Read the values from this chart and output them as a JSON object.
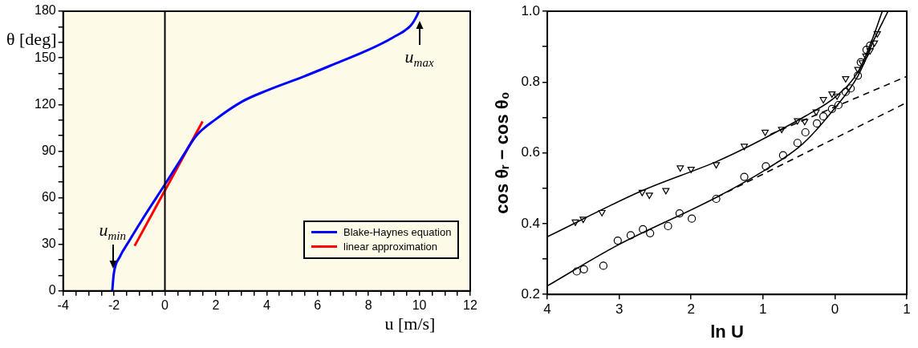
{
  "chart_data": [
    {
      "type": "line",
      "xlabel": "u [m/s]",
      "ylabel": "θ [deg]",
      "legend": "bottom right",
      "xlim": [
        -4,
        12
      ],
      "xticks": [
        -4,
        {
          "value": -3.5,
          "label": null
        },
        {
          "value": -3,
          "label": null
        },
        {
          "value": -2.5,
          "label": null
        },
        -2,
        {
          "value": -1.5,
          "label": null
        },
        {
          "value": -1,
          "label": null
        },
        {
          "value": -0.5,
          "label": null
        },
        0,
        {
          "value": 0.5,
          "label": null
        },
        {
          "value": 1,
          "label": null
        },
        {
          "value": 1.5,
          "label": null
        },
        2,
        {
          "value": 2.5,
          "label": null
        },
        {
          "value": 3,
          "label": null
        },
        {
          "value": 3.5,
          "label": null
        },
        4,
        {
          "value": 4.5,
          "label": null
        },
        {
          "value": 5,
          "label": null
        },
        {
          "value": 5.5,
          "label": null
        },
        6,
        {
          "value": 6.5,
          "label": null
        },
        {
          "value": 7,
          "label": null
        },
        {
          "value": 7.5,
          "label": null
        },
        8,
        {
          "value": 8.5,
          "label": null
        },
        {
          "value": 9,
          "label": null
        },
        {
          "value": 9.5,
          "label": null
        },
        10,
        {
          "value": 10.5,
          "label": null
        },
        {
          "value": 11,
          "label": null
        },
        {
          "value": 11.5,
          "label": null
        },
        12
      ],
      "ylim": [
        0,
        180
      ],
      "yticks": [
        0,
        {
          "value": 10,
          "label": null
        },
        {
          "value": 20,
          "label": null
        },
        30,
        {
          "value": 40,
          "label": null
        },
        {
          "value": 50,
          "label": null
        },
        60,
        {
          "value": 70,
          "label": null
        },
        {
          "value": 80,
          "label": null
        },
        90,
        {
          "value": 100,
          "label": null
        },
        {
          "value": 110,
          "label": null
        },
        120,
        {
          "value": 130,
          "label": null
        },
        {
          "value": 140,
          "label": null
        },
        150,
        {
          "value": 160,
          "label": null
        },
        {
          "value": 170,
          "label": null
        },
        180
      ],
      "ref_lines": [
        {
          "axis": "x",
          "value": 0,
          "color": "#000000"
        }
      ],
      "annotations": [
        {
          "text": "u$_{min}$",
          "x": -2.05,
          "y": 0
        },
        {
          "text": "u$_{max}$",
          "x": 10,
          "y": 180
        }
      ],
      "series": [
        {
          "name": "Blake-Haynes equation",
          "color": "#0000ff",
          "x": [
            -2.07,
            -2.01,
            -1.77,
            -1.41,
            -0.81,
            -0.02,
            0.64,
            1.24,
            1.96,
            3.05,
            4.01,
            5.46,
            6.66,
            7.98,
            8.95,
            9.67,
            9.9,
            9.98
          ],
          "values": [
            0,
            11,
            22,
            32,
            48,
            68,
            85,
            100,
            110,
            122,
            129,
            138,
            146,
            155,
            163,
            171,
            177,
            180
          ]
        },
        {
          "name": "linear approximation",
          "color": "#ff0000",
          "x": [
            -1.19,
            1.48
          ],
          "values": [
            29,
            109
          ]
        }
      ]
    },
    {
      "type": "line",
      "xlabel": "ln U",
      "ylabel": "cos θᵣ − cos θ₀",
      "xlim": [
        -4,
        1
      ],
      "xticks": [
        {
          "value": -4,
          "label": "4"
        },
        {
          "value": -3,
          "label": "3"
        },
        {
          "value": -2,
          "label": "2"
        },
        {
          "value": -1,
          "label": "1"
        },
        0,
        1
      ],
      "ylim": [
        0.2,
        1
      ],
      "yticks": [
        0.2,
        {
          "value": 0.3,
          "label": null
        },
        0.4,
        {
          "value": 0.5,
          "label": null
        },
        0.6,
        {
          "value": 0.7,
          "label": null
        },
        0.8,
        {
          "value": 0.9,
          "label": null
        },
        {
          "value": 1,
          "label": "1.0"
        }
      ],
      "series": [
        {
          "type": "scatter",
          "marker": "triangle",
          "color": "#000000",
          "x": [
            -3.61,
            -3.5,
            -3.24,
            -2.68,
            -2.58,
            -2.35,
            -2.15,
            -2.0,
            -1.65,
            -1.26,
            -0.97,
            -0.74,
            -0.52,
            -0.42,
            -0.26,
            -0.16,
            -0.04,
            0.03,
            0.15,
            0.32,
            0.38,
            0.43,
            0.49,
            0.55,
            0.59
          ],
          "values": [
            0.405,
            0.413,
            0.432,
            0.489,
            0.481,
            0.494,
            0.558,
            0.554,
            0.567,
            0.619,
            0.659,
            0.667,
            0.691,
            0.689,
            0.716,
            0.751,
            0.767,
            0.761,
            0.81,
            0.836,
            0.855,
            0.874,
            0.889,
            0.911,
            0.937
          ]
        },
        {
          "type": "scatter",
          "marker": "circle",
          "color": "#000000",
          "x": [
            -3.59,
            -3.49,
            -3.22,
            -3.02,
            -2.84,
            -2.67,
            -2.57,
            -2.32,
            -2.16,
            -1.99,
            -1.65,
            -1.26,
            -0.96,
            -0.72,
            -0.52,
            -0.41,
            -0.25,
            -0.16,
            -0.04,
            0.05,
            0.15,
            0.22,
            0.32,
            0.36,
            0.44,
            0.49
          ],
          "values": [
            0.265,
            0.271,
            0.281,
            0.352,
            0.367,
            0.384,
            0.373,
            0.393,
            0.429,
            0.414,
            0.47,
            0.532,
            0.562,
            0.593,
            0.628,
            0.658,
            0.683,
            0.703,
            0.724,
            0.735,
            0.772,
            0.782,
            0.818,
            0.856,
            0.891,
            0.903
          ]
        },
        {
          "type": "line",
          "color": "#000000",
          "line_style": "solid",
          "x": [
            -4,
            -2.68,
            -1.65,
            -1.26,
            -0.74,
            -0.4,
            0,
            0.32,
            0.51,
            0.66
          ],
          "values": [
            0.363,
            0.493,
            0.575,
            0.612,
            0.667,
            0.705,
            0.757,
            0.828,
            0.915,
            1.0
          ]
        },
        {
          "type": "line",
          "color": "#000000",
          "line_style": "solid",
          "x": [
            -4,
            -3.06,
            -1.64,
            -0.95,
            -0.45,
            -0.03,
            0.32,
            0.55,
            0.74
          ],
          "values": [
            0.224,
            0.335,
            0.475,
            0.554,
            0.625,
            0.719,
            0.817,
            0.922,
            1.0
          ]
        },
        {
          "type": "line",
          "color": "#000000",
          "line_style": "dashed",
          "x": [
            -0.9,
            1.0
          ],
          "values": [
            0.652,
            0.816
          ]
        },
        {
          "type": "line",
          "color": "#000000",
          "line_style": "dashed",
          "x": [
            -1.64,
            1.0
          ],
          "values": [
            0.475,
            0.742
          ]
        }
      ]
    }
  ]
}
